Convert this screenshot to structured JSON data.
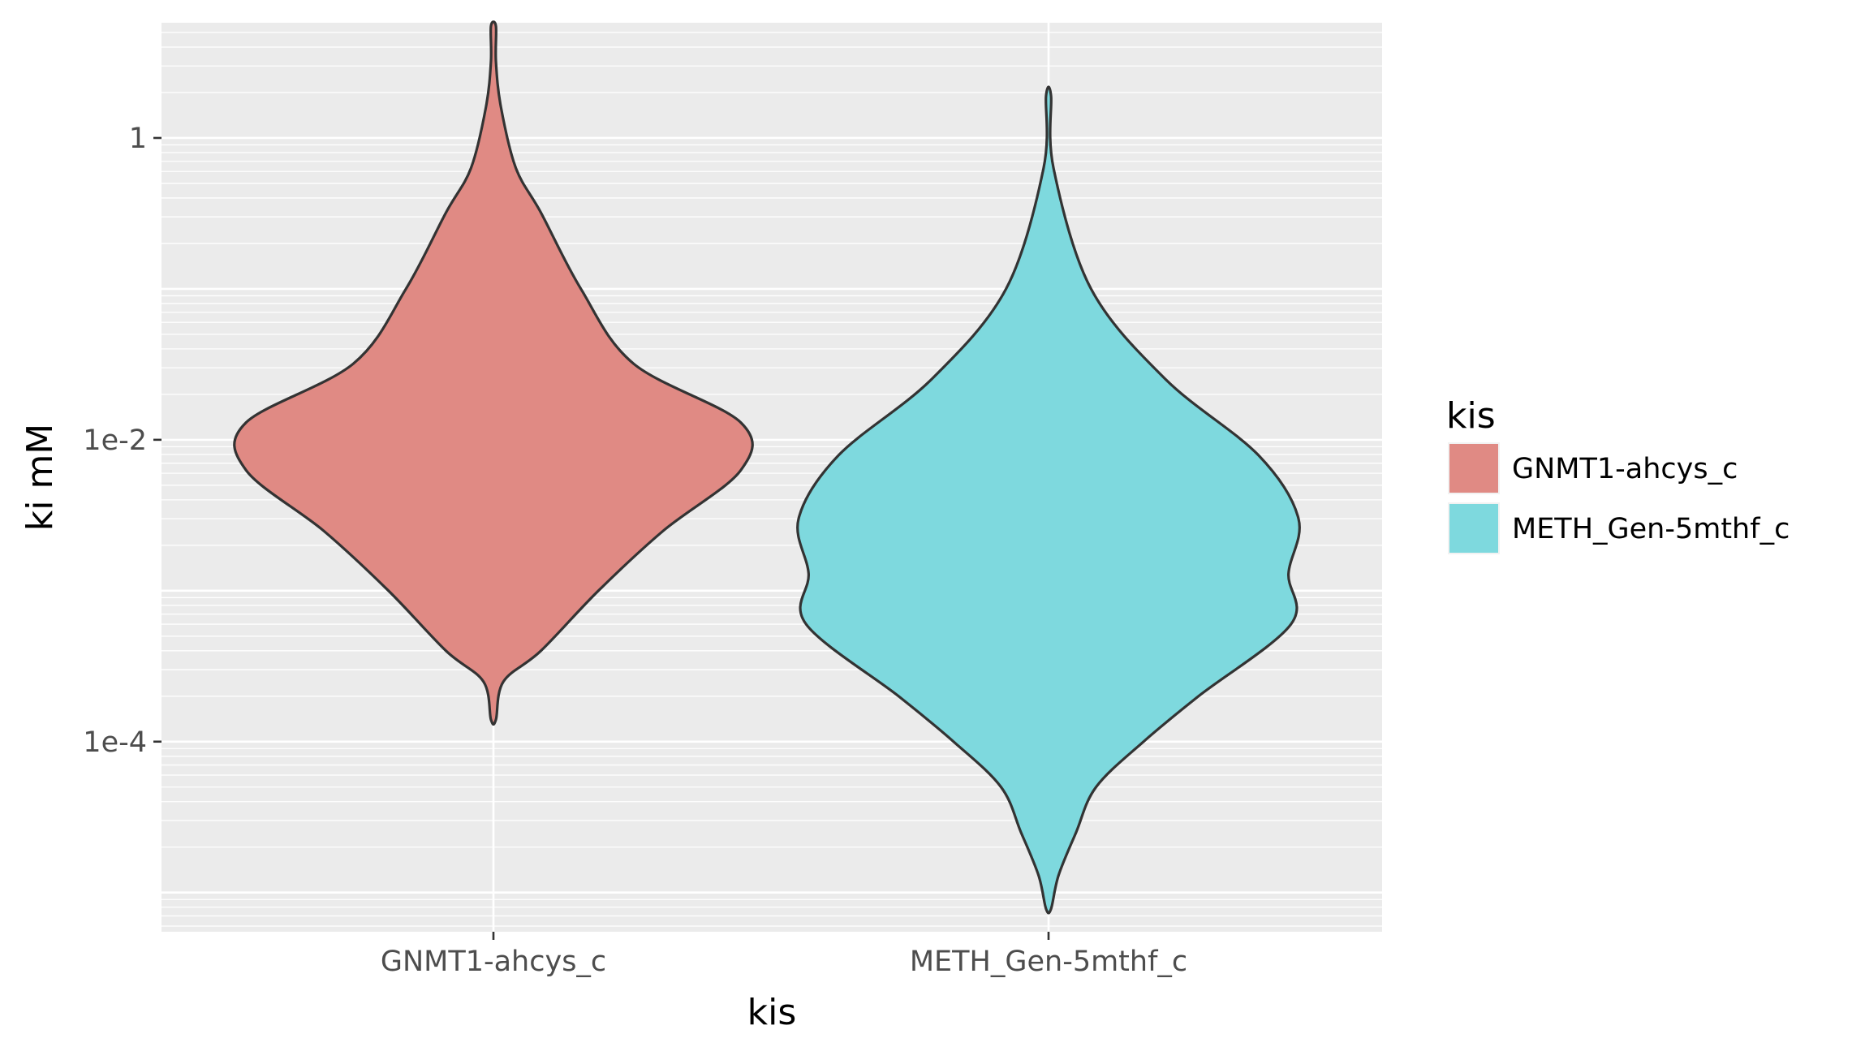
{
  "chart_data": {
    "type": "violin",
    "title": "",
    "xlabel": "kis",
    "ylabel": "ki mM",
    "y_scale": "log10",
    "ylim": [
      5.5e-06,
      5.8
    ],
    "categories": [
      "GNMT1-ahcys_c",
      "METH_Gen-5mthf_c"
    ],
    "y_ticks": [
      {
        "value": 1,
        "label": "1"
      },
      {
        "value": 0.01,
        "label": "1e-2"
      },
      {
        "value": 0.0001,
        "label": "1e-4"
      }
    ],
    "grid": true,
    "legend": {
      "title": "kis",
      "position": "right",
      "entries": [
        "GNMT1-ahcys_c",
        "METH_Gen-5mthf_c"
      ]
    },
    "series": [
      {
        "category": "GNMT1-ahcys_c",
        "color": "#E08A84",
        "min": 0.00014,
        "max": 5.5,
        "density_profile": [
          [
            5.5,
            0.01
          ],
          [
            3.2,
            0.01
          ],
          [
            1.6,
            0.03
          ],
          [
            0.63,
            0.09
          ],
          [
            0.32,
            0.19
          ],
          [
            0.1,
            0.35
          ],
          [
            0.032,
            0.56
          ],
          [
            0.013,
            0.99
          ],
          [
            0.0063,
            0.99
          ],
          [
            0.0025,
            0.68
          ],
          [
            0.001,
            0.42
          ],
          [
            0.0004,
            0.19
          ],
          [
            0.00025,
            0.04
          ],
          [
            0.00014,
            0.01
          ]
        ]
      },
      {
        "category": "METH_Gen-5mthf_c",
        "color": "#7ED9DE",
        "min": 7.8e-06,
        "max": 1.9,
        "density_profile": [
          [
            1.9,
            0.01
          ],
          [
            0.63,
            0.02
          ],
          [
            0.1,
            0.17
          ],
          [
            0.025,
            0.47
          ],
          [
            0.0079,
            0.84
          ],
          [
            0.003,
            1.0
          ],
          [
            0.0013,
            0.96
          ],
          [
            0.0006,
            0.97
          ],
          [
            0.0002,
            0.6
          ],
          [
            0.0001,
            0.38
          ],
          [
            5e-05,
            0.19
          ],
          [
            2.5e-05,
            0.11
          ],
          [
            1.3e-05,
            0.04
          ],
          [
            7.8e-06,
            0.01
          ]
        ]
      }
    ]
  }
}
